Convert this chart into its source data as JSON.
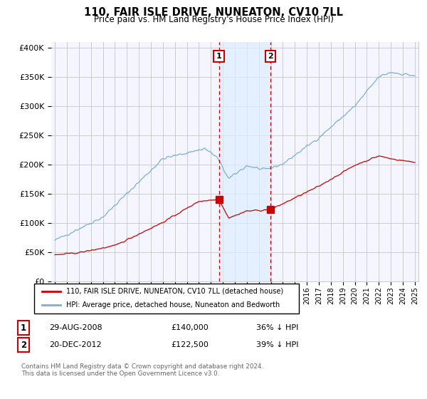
{
  "title": "110, FAIR ISLE DRIVE, NUNEATON, CV10 7LL",
  "subtitle": "Price paid vs. HM Land Registry's House Price Index (HPI)",
  "ylabel_ticks": [
    "£0",
    "£50K",
    "£100K",
    "£150K",
    "£200K",
    "£250K",
    "£300K",
    "£350K",
    "£400K"
  ],
  "ytick_values": [
    0,
    50000,
    100000,
    150000,
    200000,
    250000,
    300000,
    350000,
    400000
  ],
  "ylim": [
    0,
    410000
  ],
  "hpi_color": "#7bafd4",
  "price_color": "#cc0000",
  "marker1_x": 2008.67,
  "marker2_x": 2012.97,
  "marker1_price": 140000,
  "marker2_price": 122500,
  "shade_color": "#ddeeff",
  "legend_line1": "110, FAIR ISLE DRIVE, NUNEATON, CV10 7LL (detached house)",
  "legend_line2": "HPI: Average price, detached house, Nuneaton and Bedworth",
  "table_row1": [
    "1",
    "29-AUG-2008",
    "£140,000",
    "36% ↓ HPI"
  ],
  "table_row2": [
    "2",
    "20-DEC-2012",
    "£122,500",
    "39% ↓ HPI"
  ],
  "footnote": "Contains HM Land Registry data © Crown copyright and database right 2024.\nThis data is licensed under the Open Government Licence v3.0.",
  "background_color": "#ffffff",
  "grid_color": "#cccccc",
  "plot_bg": "#f8f8ff"
}
